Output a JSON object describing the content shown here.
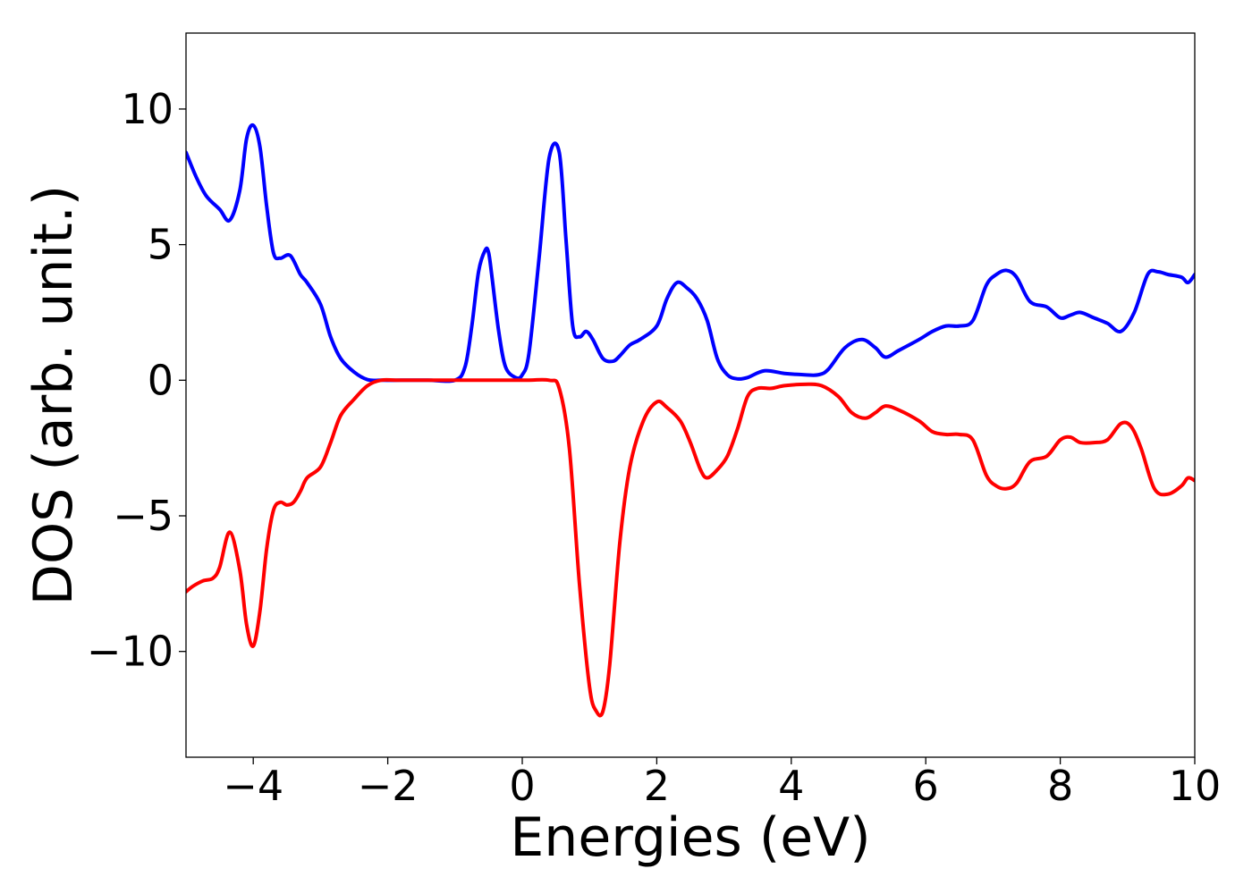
{
  "chart_data": {
    "type": "line",
    "xlabel": "Energies (eV)",
    "ylabel": "DOS (arb. unit.)",
    "xlim": [
      -5,
      10
    ],
    "ylim": [
      -13.9,
      12.8
    ],
    "xticks": [
      -4,
      -2,
      0,
      2,
      4,
      6,
      8,
      10
    ],
    "xtick_labels": [
      "−4",
      "−2",
      "0",
      "2",
      "4",
      "6",
      "8",
      "10"
    ],
    "yticks": [
      -10,
      -5,
      0,
      5,
      10
    ],
    "ytick_labels": [
      "−10",
      "−5",
      "0",
      "5",
      "10"
    ],
    "grid": false,
    "series": [
      {
        "color": "#0000ff",
        "x": [
          -5.0,
          -4.85,
          -4.7,
          -4.5,
          -4.35,
          -4.2,
          -4.1,
          -4.0,
          -3.9,
          -3.8,
          -3.7,
          -3.6,
          -3.45,
          -3.3,
          -3.2,
          -3.0,
          -2.85,
          -2.7,
          -2.5,
          -2.3,
          -2.1,
          -1.8,
          -1.4,
          -1.0,
          -0.85,
          -0.75,
          -0.65,
          -0.55,
          -0.5,
          -0.45,
          -0.35,
          -0.25,
          -0.1,
          0.0,
          0.1,
          0.25,
          0.4,
          0.55,
          0.65,
          0.75,
          0.85,
          0.95,
          1.05,
          1.2,
          1.35,
          1.45,
          1.6,
          1.75,
          2.0,
          2.15,
          2.3,
          2.45,
          2.6,
          2.75,
          2.9,
          3.05,
          3.2,
          3.35,
          3.6,
          3.9,
          4.2,
          4.4,
          4.55,
          4.8,
          5.05,
          5.25,
          5.4,
          5.6,
          5.9,
          6.1,
          6.3,
          6.5,
          6.7,
          6.9,
          7.05,
          7.2,
          7.35,
          7.55,
          7.8,
          8.0,
          8.15,
          8.3,
          8.5,
          8.7,
          8.9,
          9.1,
          9.3,
          9.45,
          9.6,
          9.8,
          9.9,
          10.0
        ],
        "y": [
          8.4,
          7.5,
          6.8,
          6.3,
          5.9,
          7.0,
          8.9,
          9.4,
          8.6,
          6.4,
          4.7,
          4.5,
          4.6,
          3.9,
          3.6,
          2.8,
          1.6,
          0.8,
          0.3,
          0.02,
          0.0,
          0.0,
          0.0,
          0.0,
          0.5,
          2.0,
          4.0,
          4.8,
          4.7,
          3.8,
          1.8,
          0.5,
          0.1,
          0.2,
          1.0,
          4.5,
          8.2,
          8.4,
          5.2,
          2.0,
          1.6,
          1.8,
          1.5,
          0.8,
          0.7,
          0.9,
          1.3,
          1.5,
          2.0,
          3.0,
          3.6,
          3.4,
          3.0,
          2.2,
          0.8,
          0.2,
          0.05,
          0.1,
          0.35,
          0.25,
          0.2,
          0.2,
          0.4,
          1.2,
          1.5,
          1.2,
          0.85,
          1.1,
          1.5,
          1.8,
          2.0,
          2.0,
          2.2,
          3.5,
          3.9,
          4.05,
          3.8,
          2.9,
          2.7,
          2.3,
          2.4,
          2.5,
          2.3,
          2.1,
          1.8,
          2.5,
          3.9,
          4.0,
          3.9,
          3.8,
          3.6,
          3.9
        ]
      },
      {
        "color": "#ff0000",
        "x": [
          -5.0,
          -4.9,
          -4.75,
          -4.6,
          -4.5,
          -4.35,
          -4.2,
          -4.1,
          -4.0,
          -3.9,
          -3.8,
          -3.7,
          -3.6,
          -3.5,
          -3.4,
          -3.3,
          -3.2,
          -3.0,
          -2.85,
          -2.7,
          -2.5,
          -2.3,
          -2.1,
          -1.8,
          -1.0,
          0.0,
          0.4,
          0.55,
          0.7,
          0.85,
          1.0,
          1.1,
          1.2,
          1.3,
          1.45,
          1.6,
          1.8,
          2.0,
          2.15,
          2.35,
          2.5,
          2.65,
          2.75,
          2.9,
          3.05,
          3.2,
          3.35,
          3.5,
          3.7,
          3.9,
          4.2,
          4.45,
          4.7,
          4.9,
          5.1,
          5.25,
          5.4,
          5.6,
          5.9,
          6.1,
          6.3,
          6.5,
          6.7,
          6.9,
          7.05,
          7.2,
          7.35,
          7.55,
          7.8,
          8.0,
          8.15,
          8.3,
          8.5,
          8.7,
          8.9,
          9.05,
          9.2,
          9.4,
          9.6,
          9.8,
          9.9,
          10.0
        ],
        "y": [
          -7.8,
          -7.6,
          -7.4,
          -7.3,
          -6.9,
          -5.6,
          -7.0,
          -9.0,
          -9.8,
          -8.5,
          -6.2,
          -4.8,
          -4.5,
          -4.6,
          -4.5,
          -4.1,
          -3.6,
          -3.2,
          -2.3,
          -1.3,
          -0.7,
          -0.2,
          0.0,
          0.0,
          0.0,
          0.0,
          0.0,
          -0.3,
          -2.5,
          -7.5,
          -11.3,
          -12.2,
          -12.2,
          -10.5,
          -6.0,
          -3.2,
          -1.5,
          -0.8,
          -1.0,
          -1.5,
          -2.3,
          -3.3,
          -3.6,
          -3.3,
          -2.8,
          -1.8,
          -0.6,
          -0.3,
          -0.3,
          -0.2,
          -0.15,
          -0.2,
          -0.6,
          -1.2,
          -1.4,
          -1.2,
          -0.95,
          -1.1,
          -1.5,
          -1.9,
          -2.0,
          -2.0,
          -2.2,
          -3.5,
          -3.9,
          -4.0,
          -3.8,
          -3.0,
          -2.8,
          -2.2,
          -2.1,
          -2.3,
          -2.3,
          -2.2,
          -1.6,
          -1.7,
          -2.5,
          -4.0,
          -4.2,
          -3.9,
          -3.6,
          -3.7
        ]
      }
    ]
  }
}
